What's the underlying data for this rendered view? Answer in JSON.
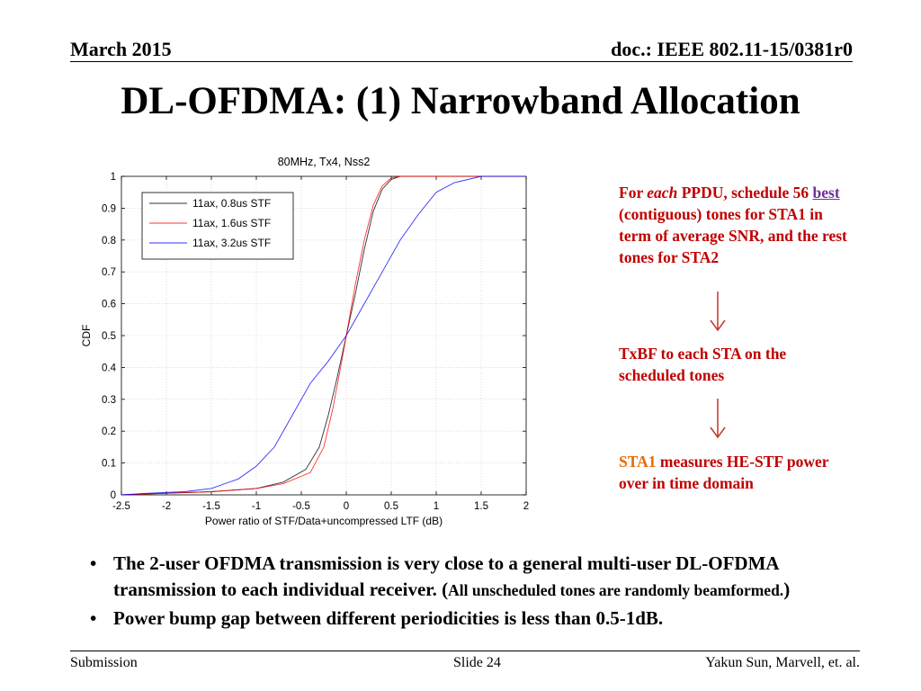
{
  "header": {
    "date": "March 2015",
    "doc": "doc.: IEEE 802.11-15/0381r0"
  },
  "title": "DL-OFDMA: (1) Narrowband Allocation",
  "notes": {
    "n1_p1": "For ",
    "n1_p2": "each",
    "n1_p3": " PPDU, schedule 56 ",
    "n1_best": "best",
    "n1_p4": " (contiguous) tones for STA1 in term of average SNR, and the rest tones for STA2",
    "n2": "TxBF to each STA on the scheduled tones",
    "n3_sta": "STA1",
    "n3_rest": " measures HE-STF power over in time domain"
  },
  "bullets": {
    "b1_main": "The 2-user OFDMA transmission is very close to a general multi-user DL-OFDMA transmission to each individual receiver. (",
    "b1_small": "All unscheduled tones are randomly beamformed.",
    "b1_end": ")",
    "b2": "Power bump gap between different periodicities is less than 0.5-1dB."
  },
  "footer": {
    "left": "Submission",
    "slide": "Slide 24",
    "right": "Yakun Sun,  Marvell, et. al."
  },
  "colors": {
    "note": "#c00000",
    "link": "#7030a0",
    "sta1": "#e36c09"
  },
  "chart_data": {
    "type": "line",
    "title": "80MHz, Tx4, Nss2",
    "xlabel": "Power ratio of STF/Data+uncompressed LTF (dB)",
    "ylabel": "CDF",
    "xlim": [
      -2.5,
      2
    ],
    "ylim": [
      0,
      1
    ],
    "xticks": [
      "-2.5",
      "-2",
      "-1.5",
      "-1",
      "-0.5",
      "0",
      "0.5",
      "1",
      "1.5",
      "2"
    ],
    "yticks": [
      "0",
      "0.1",
      "0.2",
      "0.3",
      "0.4",
      "0.5",
      "0.6",
      "0.7",
      "0.8",
      "0.9",
      "1"
    ],
    "grid": true,
    "legend_position": "top-left",
    "series": [
      {
        "name": "11ax, 0.8us STF",
        "color": "#000000",
        "points": [
          [
            -2.5,
            0
          ],
          [
            -2,
            0.005
          ],
          [
            -1.5,
            0.01
          ],
          [
            -1,
            0.02
          ],
          [
            -0.7,
            0.04
          ],
          [
            -0.45,
            0.08
          ],
          [
            -0.3,
            0.15
          ],
          [
            -0.2,
            0.25
          ],
          [
            -0.1,
            0.37
          ],
          [
            0,
            0.5
          ],
          [
            0.1,
            0.63
          ],
          [
            0.2,
            0.77
          ],
          [
            0.3,
            0.89
          ],
          [
            0.4,
            0.96
          ],
          [
            0.5,
            0.99
          ],
          [
            0.6,
            1
          ],
          [
            2,
            1
          ]
        ]
      },
      {
        "name": "11ax, 1.6us STF",
        "color": "#ff0000",
        "points": [
          [
            -2.5,
            0
          ],
          [
            -2,
            0.005
          ],
          [
            -1.5,
            0.01
          ],
          [
            -1,
            0.02
          ],
          [
            -0.7,
            0.035
          ],
          [
            -0.4,
            0.07
          ],
          [
            -0.25,
            0.15
          ],
          [
            -0.15,
            0.27
          ],
          [
            -0.05,
            0.42
          ],
          [
            0,
            0.5
          ],
          [
            0.1,
            0.66
          ],
          [
            0.2,
            0.8
          ],
          [
            0.3,
            0.91
          ],
          [
            0.4,
            0.97
          ],
          [
            0.5,
            0.995
          ],
          [
            0.6,
            1
          ],
          [
            2,
            1
          ]
        ]
      },
      {
        "name": "11ax, 3.2us STF",
        "color": "#0000ff",
        "points": [
          [
            -2.5,
            0
          ],
          [
            -2.2,
            0.005
          ],
          [
            -1.8,
            0.01
          ],
          [
            -1.5,
            0.02
          ],
          [
            -1.2,
            0.05
          ],
          [
            -1,
            0.09
          ],
          [
            -0.8,
            0.15
          ],
          [
            -0.6,
            0.25
          ],
          [
            -0.4,
            0.35
          ],
          [
            -0.2,
            0.42
          ],
          [
            0,
            0.5
          ],
          [
            0.2,
            0.6
          ],
          [
            0.4,
            0.7
          ],
          [
            0.6,
            0.8
          ],
          [
            0.8,
            0.88
          ],
          [
            1,
            0.95
          ],
          [
            1.2,
            0.98
          ],
          [
            1.5,
            1
          ],
          [
            2,
            1
          ]
        ]
      }
    ]
  }
}
